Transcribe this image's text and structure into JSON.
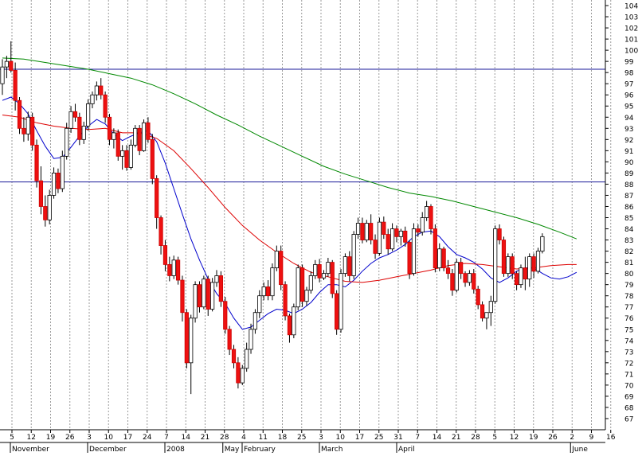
{
  "chart_data": {
    "type": "candlestick",
    "title": "",
    "xlabel": "",
    "ylabel": "",
    "ylim": [
      66,
      104.5
    ],
    "grid": "vertical dotted",
    "y_ticks": [
      67,
      68,
      69,
      70,
      71,
      72,
      73,
      74,
      75,
      76,
      77,
      78,
      79,
      80,
      81,
      82,
      83,
      84,
      85,
      86,
      87,
      88,
      89,
      90,
      91,
      92,
      93,
      94,
      95,
      96,
      97,
      98,
      99,
      100,
      101,
      102,
      103,
      104
    ],
    "x_ticks": [
      "5",
      "12",
      "19",
      "26",
      "3",
      "10",
      "17",
      "24",
      "7",
      "14",
      "21",
      "28",
      "4",
      "11",
      "18",
      "25",
      "3",
      "10",
      "17",
      "25",
      "31",
      "7",
      "14",
      "21",
      "28",
      "5",
      "12",
      "19",
      "26",
      "2",
      "9",
      "16"
    ],
    "months": [
      {
        "label": "November",
        "at": "5"
      },
      {
        "label": "December",
        "at": "3"
      },
      {
        "label": "2008",
        "at": "7"
      },
      {
        "label": "February",
        "at": "4"
      },
      {
        "label": "March",
        "at": "3"
      },
      {
        "label": "April",
        "at": "31"
      },
      {
        "label": "May",
        "at": "28"
      },
      {
        "label": "June",
        "at": "2"
      }
    ],
    "reference_lines": [
      98.3,
      88.2
    ],
    "candles": [
      [
        97.0,
        99.2,
        96.0,
        98.5
      ],
      [
        98.5,
        99.5,
        97.5,
        99.0
      ],
      [
        99.0,
        100.8,
        98.0,
        98.2
      ],
      [
        98.2,
        98.9,
        94.6,
        95.5
      ],
      [
        95.5,
        95.8,
        92.5,
        93.0
      ],
      [
        93.0,
        94.0,
        91.8,
        92.5
      ],
      [
        92.5,
        94.5,
        91.9,
        94.0
      ],
      [
        94.0,
        94.4,
        91.0,
        91.5
      ],
      [
        91.5,
        92.0,
        87.7,
        88.3
      ],
      [
        88.3,
        89.6,
        85.3,
        86.0
      ],
      [
        86.0,
        87.0,
        84.2,
        84.8
      ],
      [
        84.8,
        87.5,
        84.4,
        87.0
      ],
      [
        87.0,
        89.5,
        86.7,
        89.0
      ],
      [
        89.0,
        89.4,
        87.2,
        87.6
      ],
      [
        87.6,
        91.0,
        87.3,
        90.5
      ],
      [
        90.5,
        93.5,
        90.2,
        93.0
      ],
      [
        93.0,
        95.0,
        92.6,
        94.5
      ],
      [
        94.5,
        95.2,
        93.6,
        94.0
      ],
      [
        94.0,
        94.4,
        91.5,
        92.0
      ],
      [
        92.0,
        93.6,
        91.6,
        93.2
      ],
      [
        93.2,
        95.6,
        92.8,
        95.2
      ],
      [
        95.2,
        96.3,
        94.8,
        96.0
      ],
      [
        96.0,
        97.2,
        95.5,
        96.8
      ],
      [
        96.8,
        97.5,
        95.6,
        96.0
      ],
      [
        96.0,
        96.3,
        93.5,
        94.0
      ],
      [
        94.0,
        94.3,
        91.5,
        92.0
      ],
      [
        92.0,
        93.0,
        91.2,
        92.6
      ],
      [
        92.6,
        92.9,
        90.1,
        90.5
      ],
      [
        90.5,
        91.5,
        89.3,
        91.0
      ],
      [
        91.0,
        91.5,
        89.2,
        89.5
      ],
      [
        89.5,
        92.0,
        89.3,
        91.5
      ],
      [
        91.5,
        93.3,
        91.3,
        93.0
      ],
      [
        93.0,
        93.3,
        90.6,
        91.0
      ],
      [
        91.0,
        93.8,
        90.9,
        93.5
      ],
      [
        93.5,
        94.0,
        91.7,
        92.0
      ],
      [
        92.0,
        92.5,
        88.0,
        88.5
      ],
      [
        88.5,
        88.8,
        84.0,
        85.0
      ],
      [
        85.0,
        85.2,
        81.7,
        82.5
      ],
      [
        82.5,
        83.0,
        80.2,
        80.8
      ],
      [
        80.8,
        81.5,
        79.3,
        79.8
      ],
      [
        79.8,
        81.6,
        79.5,
        81.2
      ],
      [
        81.2,
        81.5,
        79.0,
        79.4
      ],
      [
        79.4,
        79.8,
        75.7,
        76.5
      ],
      [
        76.5,
        76.8,
        71.5,
        72.0
      ],
      [
        72.0,
        76.3,
        69.2,
        76.0
      ],
      [
        76.0,
        79.3,
        75.6,
        79.0
      ],
      [
        79.0,
        79.3,
        76.5,
        77.0
      ],
      [
        77.0,
        79.8,
        76.8,
        79.5
      ],
      [
        79.5,
        79.8,
        76.2,
        76.8
      ],
      [
        76.8,
        79.6,
        76.6,
        79.2
      ],
      [
        79.2,
        80.3,
        78.8,
        79.8
      ],
      [
        79.8,
        80.2,
        77.0,
        77.5
      ],
      [
        77.5,
        77.9,
        74.6,
        75.0
      ],
      [
        75.0,
        75.3,
        72.7,
        73.2
      ],
      [
        73.2,
        73.6,
        71.5,
        72.0
      ],
      [
        72.0,
        72.5,
        69.7,
        70.2
      ],
      [
        70.2,
        71.8,
        70.0,
        71.5
      ],
      [
        71.5,
        73.8,
        71.2,
        73.2
      ],
      [
        73.2,
        75.5,
        72.8,
        75.0
      ],
      [
        75.0,
        76.8,
        74.6,
        76.5
      ],
      [
        76.5,
        78.5,
        76.0,
        78.0
      ],
      [
        78.0,
        79.2,
        77.6,
        78.8
      ],
      [
        78.8,
        79.4,
        77.6,
        78.0
      ],
      [
        78.0,
        80.9,
        77.6,
        80.5
      ],
      [
        80.5,
        82.5,
        80.2,
        82.0
      ],
      [
        82.0,
        82.5,
        78.5,
        79.0
      ],
      [
        79.0,
        79.3,
        75.8,
        76.2
      ],
      [
        76.2,
        76.4,
        73.8,
        74.5
      ],
      [
        74.5,
        77.3,
        74.2,
        77.0
      ],
      [
        77.0,
        80.8,
        76.7,
        80.5
      ],
      [
        80.5,
        80.8,
        77.0,
        77.5
      ],
      [
        77.5,
        78.8,
        77.1,
        78.5
      ],
      [
        78.5,
        80.2,
        78.2,
        79.8
      ],
      [
        79.8,
        81.2,
        79.5,
        80.8
      ],
      [
        80.8,
        81.3,
        79.2,
        79.6
      ],
      [
        79.6,
        80.3,
        79.4,
        80.0
      ],
      [
        80.0,
        81.4,
        79.7,
        81.0
      ],
      [
        81.0,
        81.2,
        77.8,
        78.2
      ],
      [
        78.2,
        78.5,
        74.5,
        75.0
      ],
      [
        75.0,
        80.4,
        74.7,
        80.0
      ],
      [
        80.0,
        81.8,
        79.7,
        81.5
      ],
      [
        81.5,
        82.0,
        79.3,
        79.8
      ],
      [
        79.8,
        83.8,
        79.5,
        83.5
      ],
      [
        83.5,
        85.0,
        83.1,
        84.5
      ],
      [
        84.5,
        85.0,
        82.7,
        83.0
      ],
      [
        83.0,
        84.8,
        82.8,
        84.5
      ],
      [
        84.5,
        85.3,
        82.6,
        83.0
      ],
      [
        83.0,
        83.5,
        81.3,
        81.8
      ],
      [
        81.8,
        85.0,
        81.6,
        84.6
      ],
      [
        84.6,
        85.1,
        83.1,
        83.5
      ],
      [
        83.5,
        84.0,
        81.7,
        82.2
      ],
      [
        82.2,
        84.5,
        82.0,
        84.0
      ],
      [
        84.0,
        84.3,
        82.8,
        83.3
      ],
      [
        83.3,
        84.0,
        82.5,
        83.8
      ],
      [
        83.8,
        84.2,
        82.4,
        82.8
      ],
      [
        82.8,
        83.0,
        79.5,
        80.0
      ],
      [
        80.0,
        84.5,
        79.8,
        84.0
      ],
      [
        84.0,
        84.4,
        83.3,
        83.7
      ],
      [
        83.7,
        85.5,
        83.4,
        85.0
      ],
      [
        85.0,
        86.5,
        84.7,
        86.0
      ],
      [
        86.0,
        86.2,
        83.5,
        84.0
      ],
      [
        84.0,
        84.4,
        80.1,
        80.5
      ],
      [
        80.5,
        82.7,
        80.2,
        82.2
      ],
      [
        82.2,
        82.4,
        80.2,
        80.5
      ],
      [
        80.5,
        81.2,
        79.5,
        80.0
      ],
      [
        80.0,
        80.4,
        78.0,
        78.5
      ],
      [
        78.5,
        81.3,
        78.3,
        81.0
      ],
      [
        81.0,
        81.4,
        79.5,
        80.0
      ],
      [
        80.0,
        80.2,
        78.8,
        79.2
      ],
      [
        79.2,
        80.3,
        78.9,
        80.0
      ],
      [
        80.0,
        80.4,
        78.2,
        78.6
      ],
      [
        78.6,
        78.9,
        76.8,
        77.2
      ],
      [
        77.2,
        77.5,
        75.7,
        76.0
      ],
      [
        76.0,
        76.4,
        75.0,
        76.5
      ],
      [
        76.5,
        78.0,
        75.3,
        77.5
      ],
      [
        77.5,
        84.3,
        77.3,
        84.0
      ],
      [
        84.0,
        84.4,
        82.6,
        83.0
      ],
      [
        83.0,
        83.3,
        79.7,
        80.0
      ],
      [
        80.0,
        81.8,
        79.7,
        81.5
      ],
      [
        81.5,
        81.8,
        79.5,
        80.0
      ],
      [
        80.0,
        80.2,
        78.5,
        79.0
      ],
      [
        79.0,
        80.8,
        78.7,
        80.5
      ],
      [
        80.5,
        81.5,
        78.5,
        79.5
      ],
      [
        79.5,
        81.8,
        78.8,
        81.5
      ],
      [
        81.5,
        81.8,
        79.6,
        80.2
      ],
      [
        80.2,
        82.3,
        80.0,
        82.0
      ],
      [
        82.0,
        83.6,
        81.8,
        83.3
      ]
    ],
    "series": [
      {
        "period": "short",
        "color": "#0000cc",
        "values": [
          [
            0,
            95.5
          ],
          [
            2,
            95.8
          ],
          [
            4,
            95.2
          ],
          [
            6,
            94.3
          ],
          [
            8,
            92.8
          ],
          [
            10,
            91.4
          ],
          [
            12,
            90.3
          ],
          [
            14,
            90.4
          ],
          [
            16,
            91.3
          ],
          [
            18,
            92.3
          ],
          [
            20,
            93.2
          ],
          [
            22,
            93.8
          ],
          [
            24,
            93.4
          ],
          [
            26,
            92.5
          ],
          [
            28,
            91.9
          ],
          [
            30,
            92.3
          ],
          [
            32,
            92.6
          ],
          [
            34,
            92.8
          ],
          [
            36,
            91.8
          ],
          [
            38,
            89.9
          ],
          [
            40,
            87.6
          ],
          [
            42,
            85.3
          ],
          [
            44,
            83.1
          ],
          [
            46,
            81.2
          ],
          [
            48,
            79.5
          ],
          [
            50,
            78.2
          ],
          [
            52,
            77.3
          ],
          [
            54,
            76.0
          ],
          [
            56,
            75.0
          ],
          [
            58,
            75.2
          ],
          [
            60,
            75.8
          ],
          [
            62,
            76.4
          ],
          [
            64,
            76.8
          ],
          [
            66,
            76.7
          ],
          [
            68,
            76.4
          ],
          [
            70,
            76.8
          ],
          [
            72,
            77.4
          ],
          [
            74,
            78.3
          ],
          [
            76,
            79.0
          ],
          [
            78,
            79.0
          ],
          [
            80,
            78.8
          ],
          [
            82,
            79.4
          ],
          [
            84,
            80.2
          ],
          [
            86,
            80.9
          ],
          [
            88,
            81.4
          ],
          [
            90,
            81.7
          ],
          [
            92,
            82.1
          ],
          [
            94,
            82.6
          ],
          [
            96,
            83.3
          ],
          [
            98,
            83.7
          ],
          [
            100,
            83.8
          ],
          [
            102,
            83.3
          ],
          [
            104,
            82.4
          ],
          [
            106,
            81.7
          ],
          [
            108,
            81.4
          ],
          [
            110,
            81.0
          ],
          [
            112,
            80.4
          ],
          [
            114,
            79.6
          ],
          [
            116,
            79.2
          ],
          [
            118,
            79.6
          ],
          [
            120,
            80.2
          ],
          [
            122,
            80.5
          ],
          [
            124,
            80.5
          ],
          [
            126,
            80.0
          ],
          [
            128,
            79.6
          ],
          [
            130,
            79.5
          ],
          [
            132,
            79.7
          ],
          [
            134,
            80.1
          ]
        ]
      },
      {
        "period": "mid",
        "color": "#dd0000",
        "values": [
          [
            0,
            94.2
          ],
          [
            4,
            94.0
          ],
          [
            8,
            93.5
          ],
          [
            12,
            93.2
          ],
          [
            16,
            93.0
          ],
          [
            20,
            92.9
          ],
          [
            24,
            93.0
          ],
          [
            28,
            92.6
          ],
          [
            32,
            92.6
          ],
          [
            36,
            92.1
          ],
          [
            40,
            91.0
          ],
          [
            44,
            89.4
          ],
          [
            48,
            87.7
          ],
          [
            52,
            85.9
          ],
          [
            56,
            84.3
          ],
          [
            60,
            83.0
          ],
          [
            64,
            81.9
          ],
          [
            68,
            80.9
          ],
          [
            72,
            80.1
          ],
          [
            76,
            79.7
          ],
          [
            80,
            79.3
          ],
          [
            84,
            79.2
          ],
          [
            88,
            79.4
          ],
          [
            92,
            79.7
          ],
          [
            96,
            80.0
          ],
          [
            100,
            80.3
          ],
          [
            104,
            80.7
          ],
          [
            108,
            80.9
          ],
          [
            112,
            80.8
          ],
          [
            116,
            80.6
          ],
          [
            120,
            80.4
          ],
          [
            124,
            80.5
          ],
          [
            128,
            80.7
          ],
          [
            132,
            80.8
          ],
          [
            134,
            80.8
          ]
        ]
      },
      {
        "period": "long",
        "color": "#008800",
        "values": [
          [
            0,
            99.3
          ],
          [
            5,
            99.2
          ],
          [
            10,
            98.9
          ],
          [
            15,
            98.6
          ],
          [
            20,
            98.3
          ],
          [
            25,
            97.9
          ],
          [
            30,
            97.5
          ],
          [
            35,
            96.9
          ],
          [
            40,
            96.1
          ],
          [
            45,
            95.2
          ],
          [
            50,
            94.2
          ],
          [
            55,
            93.3
          ],
          [
            60,
            92.3
          ],
          [
            65,
            91.4
          ],
          [
            70,
            90.5
          ],
          [
            75,
            89.6
          ],
          [
            80,
            88.9
          ],
          [
            85,
            88.3
          ],
          [
            90,
            87.7
          ],
          [
            95,
            87.2
          ],
          [
            100,
            86.9
          ],
          [
            105,
            86.5
          ],
          [
            110,
            86.0
          ],
          [
            115,
            85.5
          ],
          [
            120,
            85.0
          ],
          [
            125,
            84.4
          ],
          [
            130,
            83.7
          ],
          [
            134,
            83.1
          ]
        ]
      }
    ]
  }
}
